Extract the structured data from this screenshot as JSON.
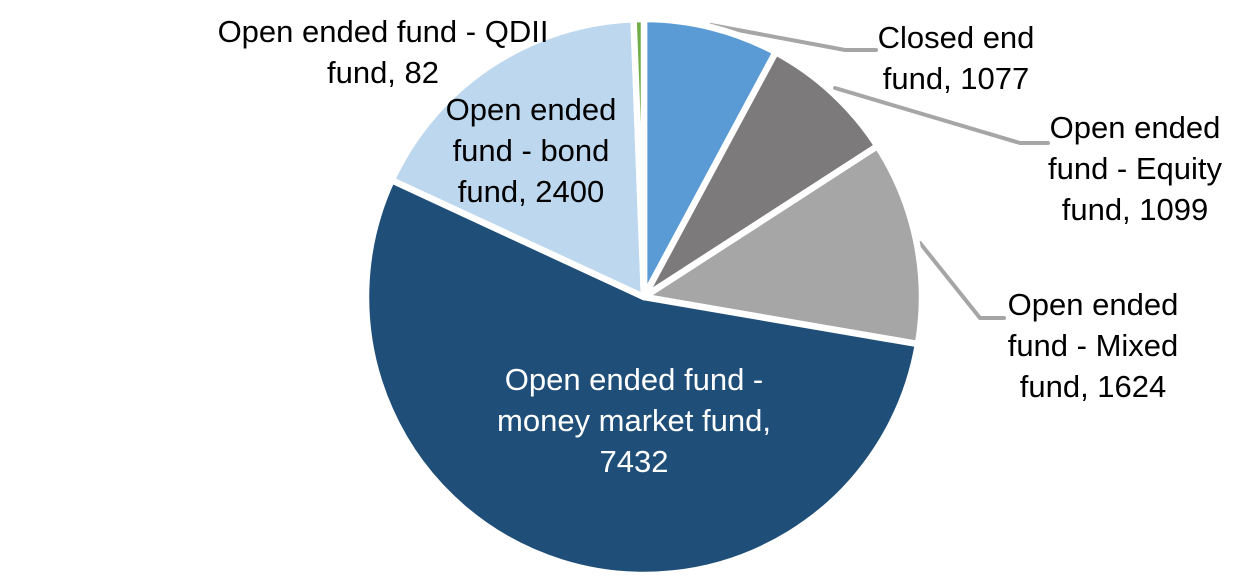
{
  "chart_data": {
    "type": "pie",
    "title": "",
    "legend": "none",
    "direction": "clockwise",
    "start_angle_deg": 0,
    "slices": [
      {
        "id": "closed-end-fund",
        "label": "Closed end fund",
        "value": 1077,
        "color": "#5B9BD5",
        "label_lines": [
          "Closed end",
          "fund, 1077"
        ],
        "label_color": "#000000",
        "leader_line": true
      },
      {
        "id": "open-ended-equity-fund",
        "label": "Open ended fund - Equity fund",
        "value": 1099,
        "color": "#7C7A7A",
        "label_lines": [
          "Open ended",
          "fund - Equity",
          "fund, 1099"
        ],
        "label_color": "#000000",
        "leader_line": true
      },
      {
        "id": "open-ended-mixed-fund",
        "label": "Open ended fund - Mixed fund",
        "value": 1624,
        "color": "#A6A6A6",
        "label_lines": [
          "Open ended",
          "fund - Mixed",
          "fund, 1624"
        ],
        "label_color": "#000000",
        "leader_line": true
      },
      {
        "id": "open-ended-money-market-fund",
        "label": "Open ended fund - money market fund",
        "value": 7432,
        "color": "#1F4E79",
        "label_lines": [
          "Open ended fund -",
          "money market fund,",
          "7432"
        ],
        "label_color": "#FFFFFF",
        "leader_line": false
      },
      {
        "id": "open-ended-bond-fund",
        "label": "Open ended fund - bond fund",
        "value": 2400,
        "color": "#BDD7EE",
        "label_lines": [
          "Open ended",
          "fund - bond",
          "fund, 2400"
        ],
        "label_color": "#000000",
        "leader_line": false
      },
      {
        "id": "open-ended-qdii-fund",
        "label": "Open ended fund - QDII fund",
        "value": 82,
        "color": "#70AD47",
        "label_lines": [
          "Open ended fund - QDII",
          "fund, 82"
        ],
        "label_color": "#000000",
        "leader_line": false
      }
    ],
    "colors": {
      "slice_border": "#FFFFFF",
      "leader_line": "#A6A6A6",
      "background": "#FFFFFF"
    }
  }
}
